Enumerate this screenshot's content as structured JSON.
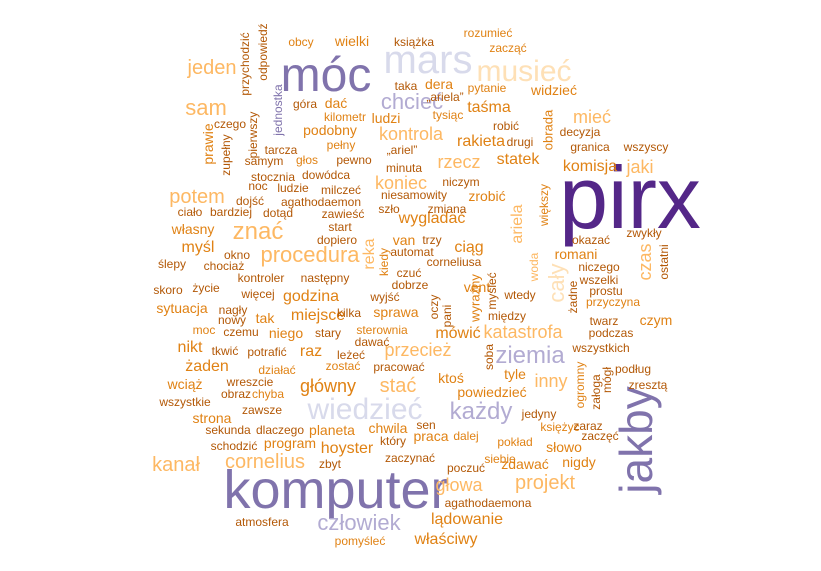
{
  "palette": {
    "dark_purple": "#542788",
    "mid_purple": "#8073ac",
    "light_purple": "#b2abd2",
    "lavender": "#d8daeb",
    "peach": "#fee0b6",
    "light_orange": "#fdb863",
    "orange": "#e08214",
    "dark_orange": "#b35806"
  },
  "words": [
    {
      "t": "pirx",
      "f": 88,
      "c": "dark_purple"
    },
    {
      "t": "komputer",
      "f": 54,
      "c": "mid_purple"
    },
    {
      "t": "jakby",
      "f": 46,
      "c": "mid_purple",
      "r": true
    },
    {
      "t": "móc",
      "f": 48,
      "c": "mid_purple"
    },
    {
      "t": "mars",
      "f": 40,
      "c": "lavender"
    },
    {
      "t": "musieć",
      "f": 30,
      "c": "peach"
    },
    {
      "t": "chcieć",
      "f": 22,
      "c": "light_purple"
    },
    {
      "t": "wiedzieć",
      "f": 30,
      "c": "lavender"
    },
    {
      "t": "ziemia",
      "f": 24,
      "c": "light_purple"
    },
    {
      "t": "każdy",
      "f": 24,
      "c": "light_purple"
    },
    {
      "t": "człowiek",
      "f": 22,
      "c": "light_purple"
    },
    {
      "t": "znać",
      "f": 24,
      "c": "light_orange"
    },
    {
      "t": "procedura",
      "f": 22,
      "c": "light_orange"
    },
    {
      "t": "cały",
      "f": 22,
      "c": "peach",
      "r": true
    },
    {
      "t": "jeden",
      "f": 20,
      "c": "light_orange"
    },
    {
      "t": "sam",
      "f": 22,
      "c": "light_orange"
    },
    {
      "t": "potem",
      "f": 20,
      "c": "light_orange"
    },
    {
      "t": "kanał",
      "f": 20,
      "c": "light_orange"
    },
    {
      "t": "cornelius",
      "f": 20,
      "c": "light_orange"
    },
    {
      "t": "projekt",
      "f": 20,
      "c": "light_orange"
    },
    {
      "t": "głowa",
      "f": 18,
      "c": "light_orange"
    },
    {
      "t": "katastrofa",
      "f": 18,
      "c": "light_orange"
    },
    {
      "t": "przecież",
      "f": 18,
      "c": "light_orange"
    },
    {
      "t": "stać",
      "f": 20,
      "c": "light_orange"
    },
    {
      "t": "inny",
      "f": 18,
      "c": "light_orange"
    },
    {
      "t": "mieć",
      "f": 18,
      "c": "light_orange"
    },
    {
      "t": "jaki",
      "f": 18,
      "c": "light_orange"
    },
    {
      "t": "czas",
      "f": 18,
      "c": "light_orange",
      "r": true
    },
    {
      "t": "koniec",
      "f": 18,
      "c": "light_orange"
    },
    {
      "t": "rzecz",
      "f": 18,
      "c": "light_orange"
    },
    {
      "t": "kontrola",
      "f": 18,
      "c": "light_orange"
    },
    {
      "t": "ariela",
      "f": 16,
      "c": "light_orange",
      "r": true
    },
    {
      "t": "reka",
      "f": 16,
      "c": "light_orange",
      "r": true
    },
    {
      "t": "wygladać",
      "f": 16,
      "c": "orange"
    },
    {
      "t": "ciąg",
      "f": 16,
      "c": "orange"
    },
    {
      "t": "główny",
      "f": 18,
      "c": "orange"
    },
    {
      "t": "hoyster",
      "f": 16,
      "c": "orange"
    },
    {
      "t": "lądowanie",
      "f": 16,
      "c": "orange"
    },
    {
      "t": "właściwy",
      "f": 16,
      "c": "orange"
    },
    {
      "t": "wielki",
      "f": 14,
      "c": "orange"
    },
    {
      "t": "widzieć",
      "f": 14,
      "c": "orange"
    },
    {
      "t": "taśma",
      "f": 16,
      "c": "orange"
    },
    {
      "t": "rakieta",
      "f": 16,
      "c": "orange"
    },
    {
      "t": "statek",
      "f": 16,
      "c": "orange"
    },
    {
      "t": "komisja",
      "f": 16,
      "c": "orange"
    },
    {
      "t": "zrobić",
      "f": 14,
      "c": "orange"
    },
    {
      "t": "romani",
      "f": 14,
      "c": "orange"
    },
    {
      "t": "godzina",
      "f": 16,
      "c": "orange"
    },
    {
      "t": "sprawa",
      "f": 14,
      "c": "orange"
    },
    {
      "t": "miejsce",
      "f": 16,
      "c": "orange"
    },
    {
      "t": "niego",
      "f": 14,
      "c": "orange"
    },
    {
      "t": "raz",
      "f": 16,
      "c": "orange"
    },
    {
      "t": "mówić",
      "f": 16,
      "c": "orange"
    },
    {
      "t": "ktoś",
      "f": 14,
      "c": "orange"
    },
    {
      "t": "tyle",
      "f": 14,
      "c": "orange"
    },
    {
      "t": "powiedzieć",
      "f": 14,
      "c": "orange"
    },
    {
      "t": "planeta",
      "f": 14,
      "c": "orange"
    },
    {
      "t": "chwila",
      "f": 14,
      "c": "orange"
    },
    {
      "t": "praca",
      "f": 14,
      "c": "orange"
    },
    {
      "t": "program",
      "f": 14,
      "c": "orange"
    },
    {
      "t": "strona",
      "f": 14,
      "c": "orange"
    },
    {
      "t": "żaden",
      "f": 16,
      "c": "orange"
    },
    {
      "t": "nikt",
      "f": 16,
      "c": "orange"
    },
    {
      "t": "wciąż",
      "f": 14,
      "c": "orange"
    },
    {
      "t": "sytuacja",
      "f": 14,
      "c": "orange"
    },
    {
      "t": "tak",
      "f": 14,
      "c": "orange"
    },
    {
      "t": "myśl",
      "f": 16,
      "c": "orange"
    },
    {
      "t": "własny",
      "f": 14,
      "c": "orange"
    },
    {
      "t": "prawie",
      "f": 14,
      "c": "orange",
      "r": true
    },
    {
      "t": "słowo",
      "f": 14,
      "c": "orange"
    },
    {
      "t": "zdawać",
      "f": 14,
      "c": "orange"
    },
    {
      "t": "nigdy",
      "f": 14,
      "c": "orange"
    },
    {
      "t": "czym",
      "f": 14,
      "c": "orange"
    },
    {
      "t": "dać",
      "f": 14,
      "c": "orange"
    },
    {
      "t": "podobny",
      "f": 14,
      "c": "orange"
    },
    {
      "t": "ludzi",
      "f": 14,
      "c": "orange"
    },
    {
      "t": "dera",
      "f": 14,
      "c": "orange"
    },
    {
      "t": "obrada",
      "f": 13,
      "c": "orange",
      "r": true
    },
    {
      "t": "wyraźny",
      "f": 13,
      "c": "orange",
      "r": true
    },
    {
      "t": "van",
      "f": 14,
      "c": "orange"
    },
    {
      "t": "vent",
      "f": 14,
      "c": "orange"
    },
    {
      "t": "woda",
      "f": 12,
      "c": "light_orange",
      "r": true
    },
    {
      "t": "większy",
      "f": 12,
      "c": "orange",
      "r": true
    },
    {
      "t": "ogromny",
      "f": 12,
      "c": "orange",
      "r": true
    },
    {
      "t": "jednostka",
      "f": 12,
      "c": "mid_purple",
      "r": true
    },
    {
      "t": "dalej",
      "f": 12,
      "c": "orange"
    },
    {
      "t": "pokład",
      "f": 12,
      "c": "orange"
    },
    {
      "t": "księżyc",
      "f": 12,
      "c": "orange"
    },
    {
      "t": "siebie",
      "f": 12,
      "c": "orange"
    },
    {
      "t": "zostać",
      "f": 12,
      "c": "orange"
    },
    {
      "t": "wreszcie",
      "f": 12,
      "c": "dark_orange"
    },
    {
      "t": "zbyt",
      "f": 12,
      "c": "dark_orange"
    },
    {
      "t": "obcy",
      "f": 12,
      "c": "orange"
    },
    {
      "t": "książka",
      "f": 12,
      "c": "dark_orange"
    },
    {
      "t": "rozumieć",
      "f": 12,
      "c": "orange"
    },
    {
      "t": "zacząć",
      "f": 12,
      "c": "orange"
    },
    {
      "t": "pytanie",
      "f": 12,
      "c": "orange"
    },
    {
      "t": "tysiąc",
      "f": 12,
      "c": "orange"
    },
    {
      "t": "robić",
      "f": 12,
      "c": "dark_orange"
    },
    {
      "t": "drugi",
      "f": 12,
      "c": "dark_orange"
    },
    {
      "t": "decyzja",
      "f": 12,
      "c": "dark_orange"
    },
    {
      "t": "granica",
      "f": 12,
      "c": "dark_orange"
    },
    {
      "t": "wszyscy",
      "f": 12,
      "c": "dark_orange"
    },
    {
      "t": "góra",
      "f": 12,
      "c": "dark_orange"
    },
    {
      "t": "kilometr",
      "f": 12,
      "c": "orange"
    },
    {
      "t": "pełny",
      "f": 12,
      "c": "orange"
    },
    {
      "t": "pewno",
      "f": 12,
      "c": "dark_orange"
    },
    {
      "t": "minuta",
      "f": 12,
      "c": "dark_orange"
    },
    {
      "t": "niczym",
      "f": 12,
      "c": "dark_orange"
    },
    {
      "t": "niesamowity",
      "f": 12,
      "c": "dark_orange"
    },
    {
      "t": "zmiana",
      "f": 12,
      "c": "dark_orange"
    },
    {
      "t": "szło",
      "f": 12,
      "c": "dark_orange"
    },
    {
      "t": "czego",
      "f": 12,
      "c": "dark_orange"
    },
    {
      "t": "tarcza",
      "f": 12,
      "c": "dark_orange"
    },
    {
      "t": "samym",
      "f": 12,
      "c": "dark_orange"
    },
    {
      "t": "głos",
      "f": 12,
      "c": "orange"
    },
    {
      "t": "stocznia",
      "f": 12,
      "c": "dark_orange"
    },
    {
      "t": "dowódca",
      "f": 12,
      "c": "dark_orange"
    },
    {
      "t": "noc",
      "f": 12,
      "c": "dark_orange"
    },
    {
      "t": "ludzie",
      "f": 12,
      "c": "dark_orange"
    },
    {
      "t": "milczeć",
      "f": 12,
      "c": "dark_orange"
    },
    {
      "t": "dojść",
      "f": 12,
      "c": "dark_orange"
    },
    {
      "t": "agathodaemon",
      "f": 12,
      "c": "dark_orange"
    },
    {
      "t": "ciało",
      "f": 12,
      "c": "dark_orange"
    },
    {
      "t": "bardziej",
      "f": 12,
      "c": "dark_orange"
    },
    {
      "t": "dotąd",
      "f": 12,
      "c": "dark_orange"
    },
    {
      "t": "zawieść",
      "f": 12,
      "c": "dark_orange"
    },
    {
      "t": "dopiero",
      "f": 12,
      "c": "dark_orange"
    },
    {
      "t": "start",
      "f": 12,
      "c": "dark_orange"
    },
    {
      "t": "okno",
      "f": 12,
      "c": "dark_orange"
    },
    {
      "t": "ślepy",
      "f": 12,
      "c": "dark_orange"
    },
    {
      "t": "chociaż",
      "f": 12,
      "c": "dark_orange"
    },
    {
      "t": "kontroler",
      "f": 12,
      "c": "dark_orange"
    },
    {
      "t": "następny",
      "f": 12,
      "c": "dark_orange"
    },
    {
      "t": "skoro",
      "f": 12,
      "c": "dark_orange"
    },
    {
      "t": "życie",
      "f": 12,
      "c": "dark_orange"
    },
    {
      "t": "więcej",
      "f": 12,
      "c": "dark_orange"
    },
    {
      "t": "wyjść",
      "f": 12,
      "c": "dark_orange"
    },
    {
      "t": "nagły",
      "f": 12,
      "c": "dark_orange"
    },
    {
      "t": "nowy",
      "f": 12,
      "c": "dark_orange"
    },
    {
      "t": "czemu",
      "f": 12,
      "c": "dark_orange"
    },
    {
      "t": "moc",
      "f": 12,
      "c": "orange"
    },
    {
      "t": "kilka",
      "f": 12,
      "c": "dark_orange"
    },
    {
      "t": "stary",
      "f": 12,
      "c": "dark_orange"
    },
    {
      "t": "sterownia",
      "f": 12,
      "c": "orange"
    },
    {
      "t": "dawać",
      "f": 12,
      "c": "dark_orange"
    },
    {
      "t": "tkwić",
      "f": 12,
      "c": "dark_orange"
    },
    {
      "t": "potrafić",
      "f": 12,
      "c": "dark_orange"
    },
    {
      "t": "leżeć",
      "f": 12,
      "c": "dark_orange"
    },
    {
      "t": "pracować",
      "f": 12,
      "c": "dark_orange"
    },
    {
      "t": "działać",
      "f": 12,
      "c": "orange"
    },
    {
      "t": "obraz",
      "f": 12,
      "c": "dark_orange"
    },
    {
      "t": "chyba",
      "f": 12,
      "c": "orange"
    },
    {
      "t": "wszystkie",
      "f": 12,
      "c": "dark_orange"
    },
    {
      "t": "zawsze",
      "f": 12,
      "c": "dark_orange"
    },
    {
      "t": "sekunda",
      "f": 12,
      "c": "dark_orange"
    },
    {
      "t": "dlaczego",
      "f": 12,
      "c": "dark_orange"
    },
    {
      "t": "schodzić",
      "f": 12,
      "c": "dark_orange"
    },
    {
      "t": "który",
      "f": 12,
      "c": "dark_orange"
    },
    {
      "t": "sen",
      "f": 12,
      "c": "dark_orange"
    },
    {
      "t": "zaczynać",
      "f": 12,
      "c": "dark_orange"
    },
    {
      "t": "poczuć",
      "f": 12,
      "c": "dark_orange"
    },
    {
      "t": "agathodaemona",
      "f": 12,
      "c": "dark_orange"
    },
    {
      "t": "atmosfera",
      "f": 12,
      "c": "dark_orange"
    },
    {
      "t": "pomyśleć",
      "f": 12,
      "c": "orange"
    },
    {
      "t": "jedyny",
      "f": 12,
      "c": "dark_orange"
    },
    {
      "t": "zaraz",
      "f": 12,
      "c": "dark_orange"
    },
    {
      "t": "zaczęć",
      "f": 12,
      "c": "dark_orange"
    },
    {
      "t": "wtedy",
      "f": 12,
      "c": "dark_orange"
    },
    {
      "t": "między",
      "f": 12,
      "c": "dark_orange"
    },
    {
      "t": "wszystkich",
      "f": 12,
      "c": "dark_orange"
    },
    {
      "t": "podług",
      "f": 12,
      "c": "dark_orange"
    },
    {
      "t": "zresztą",
      "f": 12,
      "c": "dark_orange"
    },
    {
      "t": "podczas",
      "f": 12,
      "c": "dark_orange"
    },
    {
      "t": "przyczyna",
      "f": 12,
      "c": "orange"
    },
    {
      "t": "prostu",
      "f": 12,
      "c": "dark_orange"
    },
    {
      "t": "twarz",
      "f": 12,
      "c": "dark_orange"
    },
    {
      "t": "wszelki",
      "f": 12,
      "c": "dark_orange"
    },
    {
      "t": "niczego",
      "f": 12,
      "c": "dark_orange"
    },
    {
      "t": "okazać",
      "f": 12,
      "c": "dark_orange"
    },
    {
      "t": "zwykły",
      "f": 12,
      "c": "dark_orange"
    },
    {
      "t": "ostatni",
      "f": 12,
      "c": "dark_orange",
      "r": true
    },
    {
      "t": "żadne",
      "f": 12,
      "c": "dark_orange",
      "r": true
    },
    {
      "t": "załoga",
      "f": 12,
      "c": "dark_orange",
      "r": true
    },
    {
      "t": "mógł",
      "f": 12,
      "c": "dark_orange",
      "r": true
    },
    {
      "t": "soba",
      "f": 12,
      "c": "dark_orange",
      "r": true
    },
    {
      "t": "pani",
      "f": 12,
      "c": "dark_orange",
      "r": true
    },
    {
      "t": "oczy",
      "f": 12,
      "c": "dark_orange",
      "r": true
    },
    {
      "t": "myśleć",
      "f": 12,
      "c": "dark_orange",
      "r": true
    },
    {
      "t": "kiedy",
      "f": 12,
      "c": "orange",
      "r": true
    },
    {
      "t": "przychodzić",
      "f": 12,
      "c": "dark_orange",
      "r": true
    },
    {
      "t": "odpowiedź",
      "f": 12,
      "c": "dark_orange",
      "r": true
    },
    {
      "t": "pierwszy",
      "f": 12,
      "c": "dark_orange",
      "r": true
    },
    {
      "t": "zupełny",
      "f": 12,
      "c": "dark_orange",
      "r": true
    },
    {
      "t": "taka",
      "f": 12,
      "c": "dark_orange"
    },
    {
      "t": "dobrze",
      "f": 12,
      "c": "dark_orange"
    },
    {
      "t": "czuć",
      "f": 12,
      "c": "dark_orange"
    },
    {
      "t": "automat",
      "f": 12,
      "c": "dark_orange"
    },
    {
      "t": "trzy",
      "f": 12,
      "c": "dark_orange"
    },
    {
      "t": "corneliusa",
      "f": 12,
      "c": "dark_orange"
    },
    {
      "t": "„ariel”",
      "f": 12,
      "c": "dark_orange"
    },
    {
      "t": "„ariela”",
      "f": 12,
      "c": "dark_orange"
    }
  ]
}
